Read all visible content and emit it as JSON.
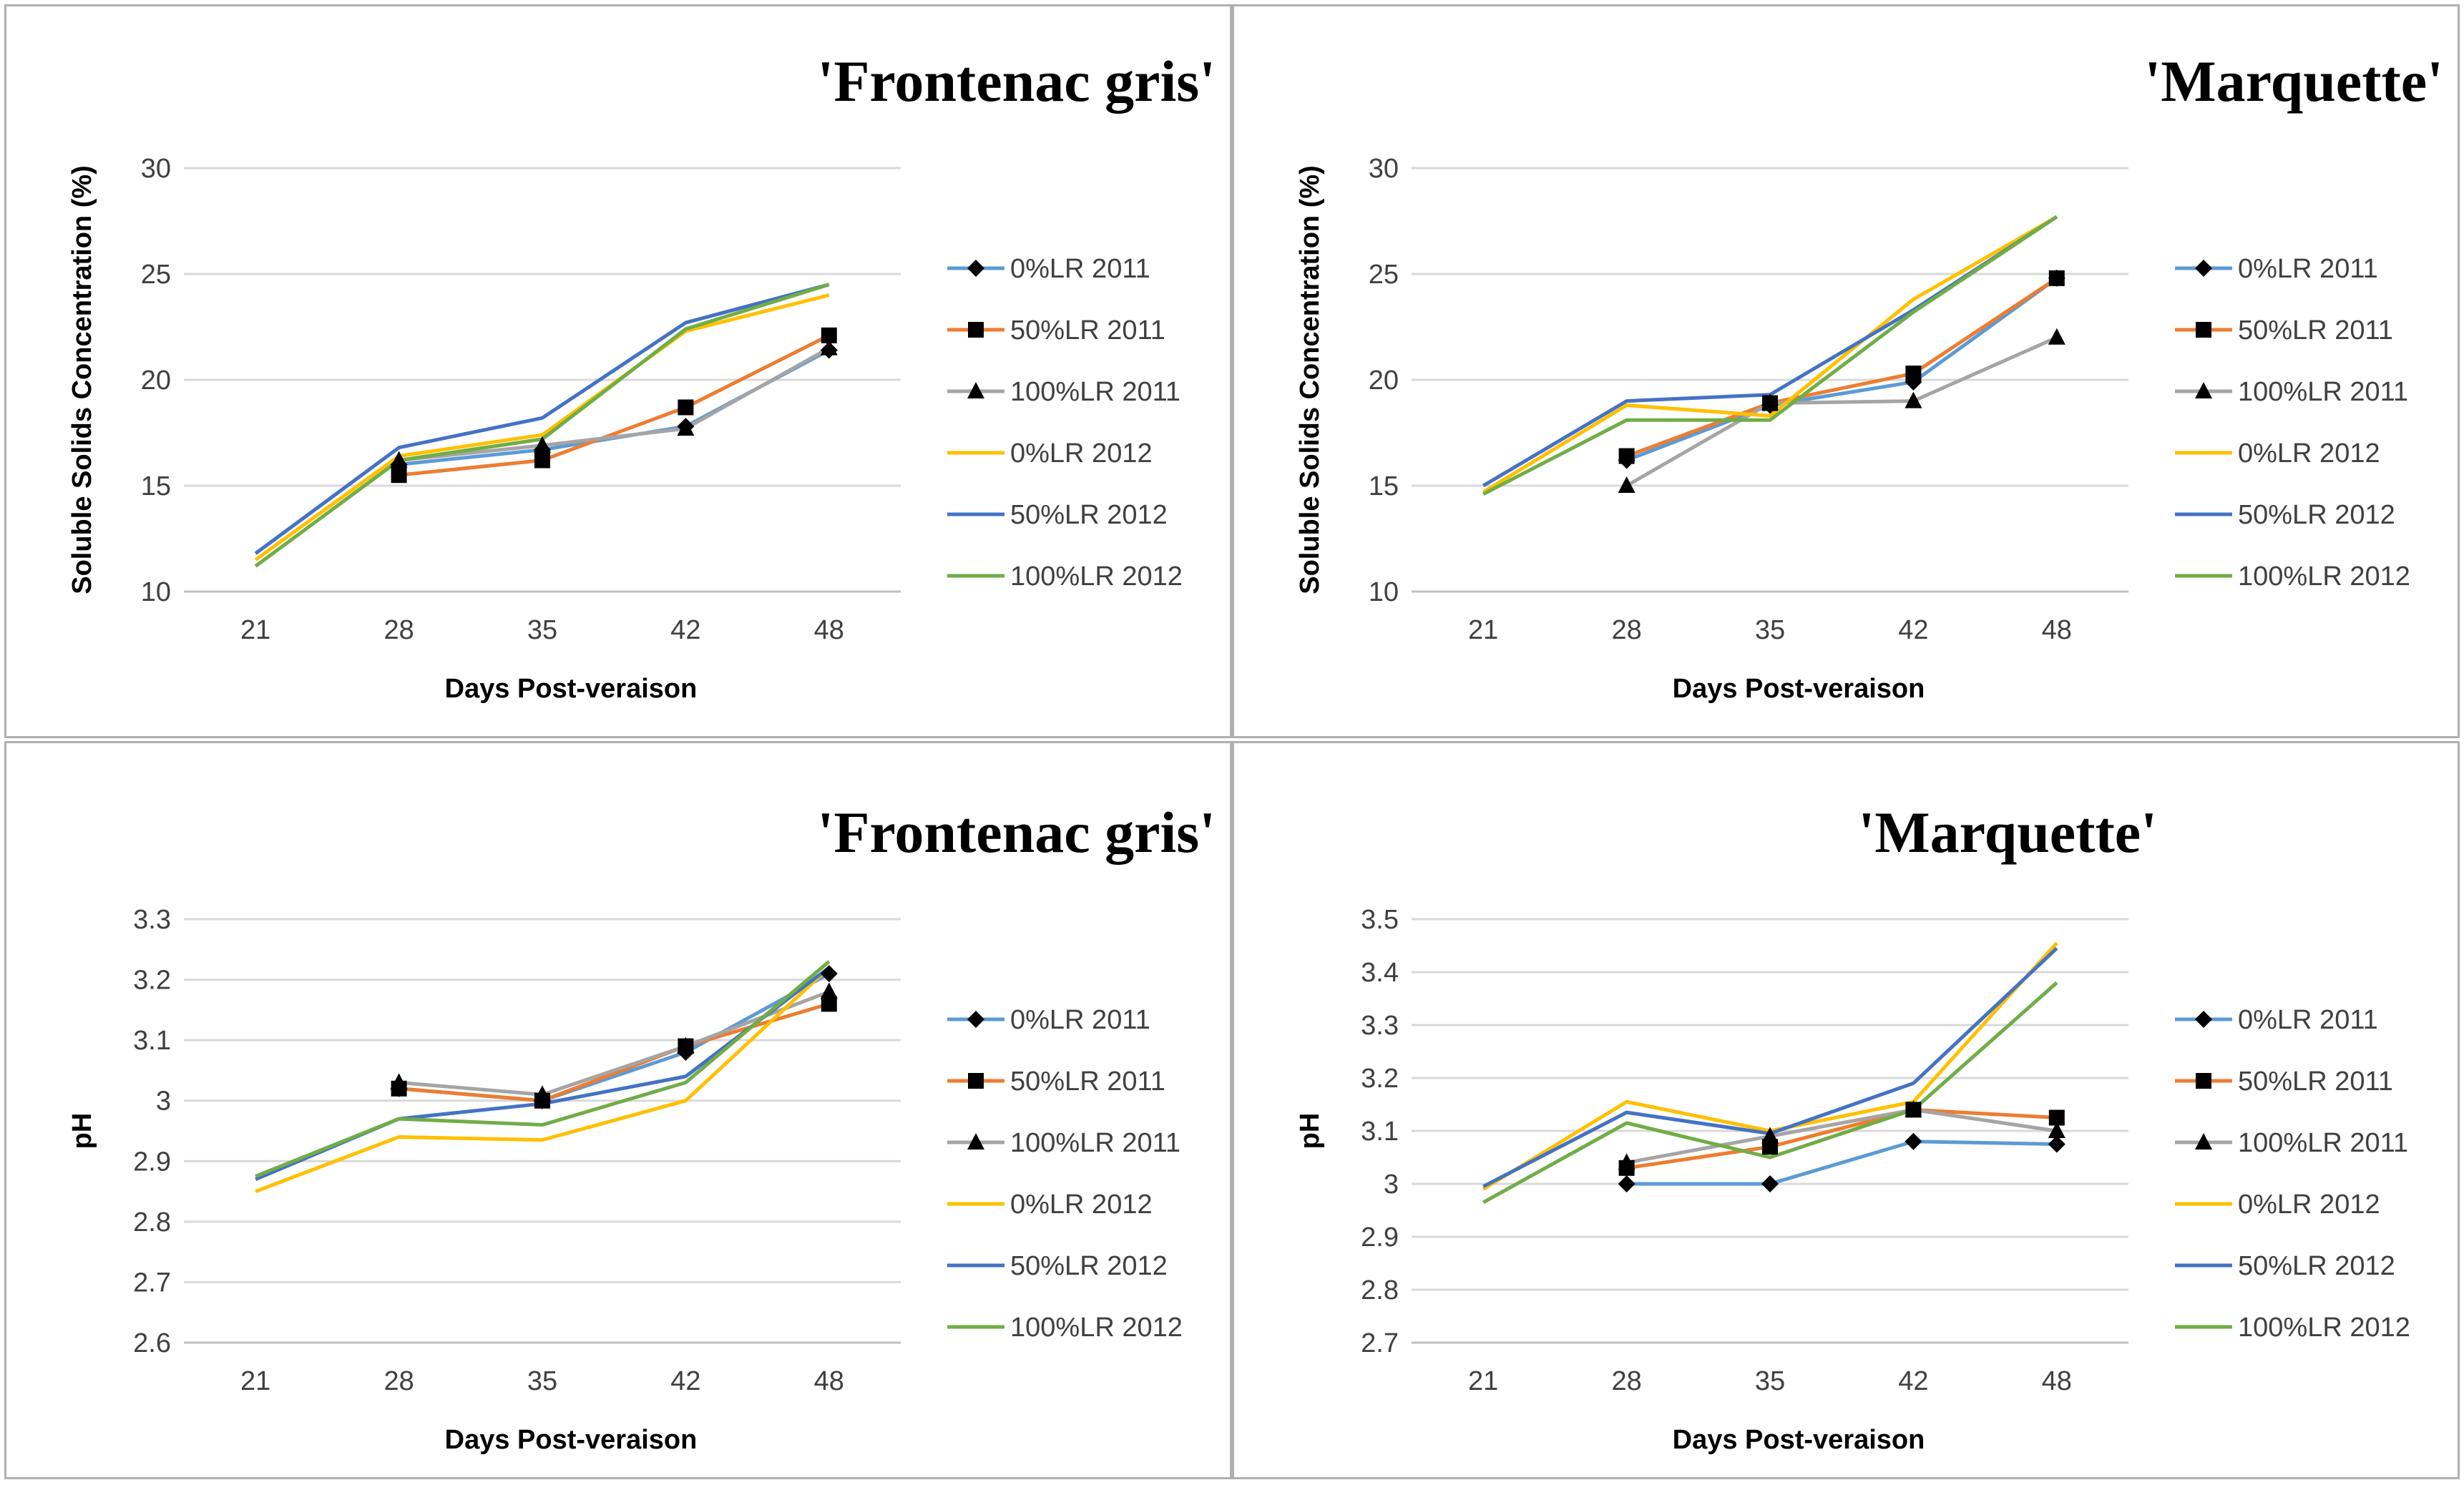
{
  "legend_order": [
    "0%LR 2011",
    "50%LR 2011",
    "100%LR 2011",
    "0%LR 2012",
    "50%LR 2012",
    "100%LR 2012"
  ],
  "colors": {
    "0%LR 2011": "#5b9bd5",
    "50%LR 2011": "#ed7d31",
    "100%LR 2011": "#a5a5a5",
    "0%LR 2012": "#ffc000",
    "50%LR 2012": "#4472c4",
    "100%LR 2012": "#70ad47",
    "marker": "#000000",
    "grid": "#d9d9d9"
  },
  "chart_data": [
    {
      "type": "line",
      "title": "'Frontenac gris'",
      "xlabel": "Days Post-veraison",
      "ylabel": "Soluble Solids Concentration (%)",
      "categories": [
        "21",
        "28",
        "35",
        "42",
        "48"
      ],
      "ylim": [
        10,
        30
      ],
      "yticks": [
        "10",
        "15",
        "20",
        "25",
        "30"
      ],
      "grid": true,
      "legend_position": "right",
      "series": [
        {
          "name": "0%LR 2011",
          "marker": "diamond",
          "values": [
            null,
            16.0,
            16.7,
            17.8,
            21.4
          ]
        },
        {
          "name": "50%LR 2011",
          "marker": "square",
          "values": [
            null,
            15.5,
            16.2,
            18.7,
            22.1
          ]
        },
        {
          "name": "100%LR 2011",
          "marker": "triangle",
          "values": [
            null,
            16.2,
            16.9,
            17.7,
            21.5
          ]
        },
        {
          "name": "0%LR 2012",
          "marker": "none",
          "values": [
            11.5,
            16.4,
            17.4,
            22.3,
            24.0
          ]
        },
        {
          "name": "50%LR 2012",
          "marker": "none",
          "values": [
            11.8,
            16.8,
            18.2,
            22.7,
            24.5
          ]
        },
        {
          "name": "100%LR 2012",
          "marker": "none",
          "values": [
            11.2,
            16.2,
            17.2,
            22.4,
            24.5
          ]
        }
      ]
    },
    {
      "type": "line",
      "title": "'Marquette'",
      "xlabel": "Days Post-veraison",
      "ylabel": "Soluble Solids Concentration (%)",
      "categories": [
        "21",
        "28",
        "35",
        "42",
        "48"
      ],
      "ylim": [
        10,
        30
      ],
      "yticks": [
        "10",
        "15",
        "20",
        "25",
        "30"
      ],
      "grid": true,
      "legend_position": "right",
      "series": [
        {
          "name": "0%LR 2011",
          "marker": "diamond",
          "values": [
            null,
            16.2,
            18.8,
            19.9,
            24.8
          ]
        },
        {
          "name": "50%LR 2011",
          "marker": "square",
          "values": [
            null,
            16.4,
            18.9,
            20.3,
            24.8
          ]
        },
        {
          "name": "100%LR 2011",
          "marker": "triangle",
          "values": [
            null,
            15.0,
            18.9,
            19.0,
            22.0
          ]
        },
        {
          "name": "0%LR 2012",
          "marker": "none",
          "values": [
            14.7,
            18.8,
            18.3,
            23.8,
            27.7
          ]
        },
        {
          "name": "50%LR 2012",
          "marker": "none",
          "values": [
            15.0,
            19.0,
            19.3,
            23.3,
            27.7
          ]
        },
        {
          "name": "100%LR 2012",
          "marker": "none",
          "values": [
            14.6,
            18.1,
            18.1,
            23.2,
            27.7
          ]
        }
      ]
    },
    {
      "type": "line",
      "title": "'Frontenac gris'",
      "xlabel": "Days Post-veraison",
      "ylabel": "pH",
      "categories": [
        "21",
        "28",
        "35",
        "42",
        "48"
      ],
      "ylim": [
        2.6,
        3.3
      ],
      "yticks": [
        "2.6",
        "2.7",
        "2.8",
        "2.9",
        "3",
        "3.1",
        "3.2",
        "3.3"
      ],
      "grid": true,
      "legend_position": "right",
      "series": [
        {
          "name": "0%LR 2011",
          "marker": "diamond",
          "values": [
            null,
            3.02,
            3.0,
            3.08,
            3.21
          ]
        },
        {
          "name": "50%LR 2011",
          "marker": "square",
          "values": [
            null,
            3.02,
            3.0,
            3.09,
            3.16
          ]
        },
        {
          "name": "100%LR 2011",
          "marker": "triangle",
          "values": [
            null,
            3.03,
            3.01,
            3.09,
            3.18
          ]
        },
        {
          "name": "0%LR 2012",
          "marker": "none",
          "values": [
            2.85,
            2.94,
            2.935,
            3.0,
            3.22
          ]
        },
        {
          "name": "50%LR 2012",
          "marker": "none",
          "values": [
            2.87,
            2.97,
            2.995,
            3.04,
            3.22
          ]
        },
        {
          "name": "100%LR 2012",
          "marker": "none",
          "values": [
            2.875,
            2.97,
            2.96,
            3.03,
            3.23
          ]
        }
      ]
    },
    {
      "type": "line",
      "title": "'Marquette'",
      "xlabel": "Days Post-veraison",
      "ylabel": "pH",
      "categories": [
        "21",
        "28",
        "35",
        "42",
        "48"
      ],
      "ylim": [
        2.7,
        3.5
      ],
      "yticks": [
        "2.7",
        "2.8",
        "2.9",
        "3",
        "3.1",
        "3.2",
        "3.3",
        "3.4",
        "3.5"
      ],
      "grid": true,
      "legend_position": "right",
      "series": [
        {
          "name": "0%LR 2011",
          "marker": "diamond",
          "values": [
            null,
            3.0,
            3.0,
            3.08,
            3.075
          ]
        },
        {
          "name": "50%LR 2011",
          "marker": "square",
          "values": [
            null,
            3.03,
            3.07,
            3.14,
            3.125
          ]
        },
        {
          "name": "100%LR 2011",
          "marker": "triangle",
          "values": [
            null,
            3.04,
            3.09,
            3.14,
            3.1
          ]
        },
        {
          "name": "0%LR 2012",
          "marker": "none",
          "values": [
            2.99,
            3.155,
            3.1,
            3.155,
            3.455
          ]
        },
        {
          "name": "50%LR 2012",
          "marker": "none",
          "values": [
            2.995,
            3.135,
            3.095,
            3.19,
            3.445
          ]
        },
        {
          "name": "100%LR 2012",
          "marker": "none",
          "values": [
            2.965,
            3.115,
            3.05,
            3.14,
            3.38
          ]
        }
      ]
    }
  ]
}
